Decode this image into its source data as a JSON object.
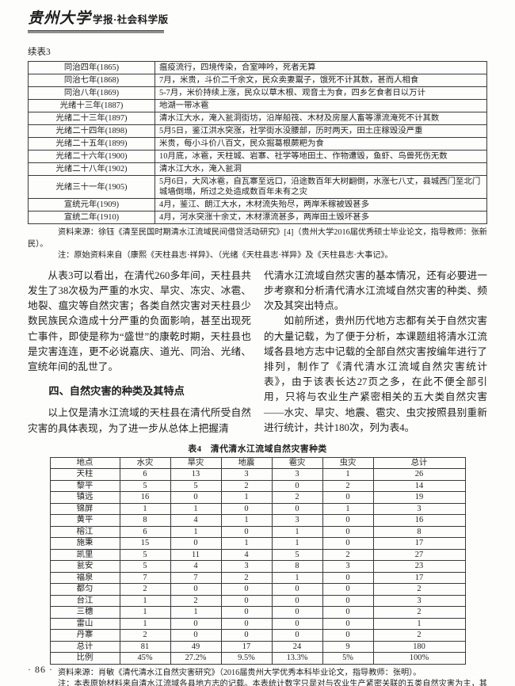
{
  "masthead": {
    "logo_calligraphy": "贵州大学",
    "logo_suffix": "学报·社会科学版"
  },
  "table3": {
    "continued_label": "续表3",
    "rows": [
      {
        "year": "同治四年(1865)",
        "desc": "瘟疫流行，四境传染，合室呻吟，死者无算"
      },
      {
        "year": "同治七年(1868)",
        "desc": "7月，米贵，斗价二千余文，民众卖妻鬻子，饿死不计其数，甚而人相食"
      },
      {
        "year": "同治八年(1869)",
        "desc": "5-7月，米价持续上涨，民众以草木根、观音土为食，四乡乞食者日以万计"
      },
      {
        "year": "光绪十三年(1887)",
        "desc": "地湖一带冰雹"
      },
      {
        "year": "光绪二十三年(1897)",
        "desc": "清水江大水，淹入瓮洞街坊，沿岸船筏、木材及房屋人畜等漂流淹死不计其数"
      },
      {
        "year": "光绪二十四年(1898)",
        "desc": "5月5日，鉴江洪水突涨，社学街水没腰部，历时两天，田土庄稼毁没严重"
      },
      {
        "year": "光绪二十五年(1899)",
        "desc": "米贵，每小斗价八百文，民众掘葛根蕨粑为食"
      },
      {
        "year": "光绪二十六年(1900)",
        "desc": "10月底，冰雹，天柱城、岩寨、社学等地田土、作物遭毁，鱼虾、鸟兽死伤无数"
      },
      {
        "year": "光绪二十八年(1902)",
        "desc": "清水江大水，淹入瓮洞"
      },
      {
        "year": "光绪三十一年(1905)",
        "desc": "5月6日，大风冰雹，自瓦寨至远口，沿途数百年大树翻倒，水涨七八丈，县城西门至北门城墙倒塌，所过之处造成数百年未有之灾"
      },
      {
        "year": "宣统元年(1909)",
        "desc": "4月，鉴江、朗江大水，木材流失殆尽，两岸禾稼被毁甚多"
      },
      {
        "year": "宣统二年(1910)",
        "desc": "4月，河水突涨十余丈，木材漂流甚多，两岸田土毁坏甚多"
      }
    ],
    "source": "资料来源：徐钰《清至民国时期清水江流域民间借贷活动研究》[4]（贵州大学2016届优秀硕士毕业论文，指导教师：张新民）。",
    "note": "注：原始资料来自（康熙《天柱县志·祥异》、（光绪《天柱县志·祥异》及《天柱县志·大事记》。"
  },
  "body": {
    "left": {
      "para1": "从表3可以看出，在清代260多年间，天柱县共发生了38次极为严重的水灾、旱灾、冻灾、冰雹、地裂、瘟灾等自然灾害；各类自然灾害对天柱县少数民族民众造成十分严重的负面影响，甚至出现死亡事件，即使是称为“盛世”的康乾时期，天柱县也是灾害连连，更不必说嘉庆、道光、同治、光绪、宣统年间的乱世了。",
      "heading": "四、自然灾害的种类及其特点",
      "para2": "以上仅是清水江流域的天柱县在清代所受自然灾害的具体表现，为了进一步从总体上把握清"
    },
    "right": {
      "para1": "代清水江流域自然灾害的基本情况，还有必要进一步考察和分析清代清水江流域自然灾害的种类、频次及其突出特点。",
      "para2": "如前所述，贵州历代地方志都有关于自然灾害的大量记载，为了便于分析，本课题组将清水江流域各县地方志中记载的全部自然灾害按编年进行了排列，制作了《清代清水江流域自然灾害统计表》，由于该表长达27页之多，在此不便全部引用，只将与农业生产紧密相关的五大类自然灾害——水灾、旱灾、地震、雹灾、虫灾按照县别重新进行统计，共计180次，列为表4。"
    }
  },
  "table4": {
    "caption": "表4　清代清水江流域自然灾害种类",
    "headers": [
      "地点",
      "水灾",
      "旱灾",
      "地震",
      "雹灾",
      "虫灾",
      "总计"
    ],
    "rows": [
      [
        "天柱",
        "6",
        "13",
        "3",
        "3",
        "1",
        "26"
      ],
      [
        "黎平",
        "5",
        "5",
        "2",
        "0",
        "2",
        "14"
      ],
      [
        "镇远",
        "16",
        "0",
        "1",
        "2",
        "0",
        "19"
      ],
      [
        "锦屏",
        "1",
        "1",
        "0",
        "0",
        "1",
        "3"
      ],
      [
        "黄平",
        "8",
        "4",
        "1",
        "3",
        "0",
        "16"
      ],
      [
        "榕江",
        "6",
        "1",
        "0",
        "1",
        "0",
        "8"
      ],
      [
        "施秉",
        "15",
        "0",
        "1",
        "1",
        "0",
        "17"
      ],
      [
        "凯里",
        "5",
        "11",
        "4",
        "5",
        "2",
        "27"
      ],
      [
        "瓮安",
        "5",
        "4",
        "3",
        "8",
        "3",
        "23"
      ],
      [
        "福泉",
        "7",
        "7",
        "2",
        "1",
        "0",
        "17"
      ],
      [
        "都匀",
        "2",
        "0",
        "0",
        "0",
        "0",
        "2"
      ],
      [
        "台江",
        "1",
        "2",
        "0",
        "0",
        "0",
        "3"
      ],
      [
        "三穗",
        "1",
        "1",
        "0",
        "0",
        "0",
        "2"
      ],
      [
        "雷山",
        "1",
        "0",
        "0",
        "0",
        "0",
        "1"
      ],
      [
        "丹寨",
        "2",
        "0",
        "0",
        "0",
        "0",
        "2"
      ],
      [
        "总计",
        "81",
        "49",
        "17",
        "24",
        "9",
        "180"
      ],
      [
        "比例",
        "45%",
        "27.2%",
        "9.5%",
        "13.3%",
        "5%",
        "100%"
      ]
    ],
    "source": "资料来源：肖敏《清代清水江自然灾害研究》（2016届贵州大学优秀本科毕业论文，指导教师：张明）。",
    "note": "注：本表原始材料来自清水江流域各县地方志的记载。本表统计数字只是对与农业生产紧密关联的五类自然灾害为主，其他诸如地裂、瘟疫等灾害没有统计在内。"
  },
  "page_number": "· 86 ·"
}
